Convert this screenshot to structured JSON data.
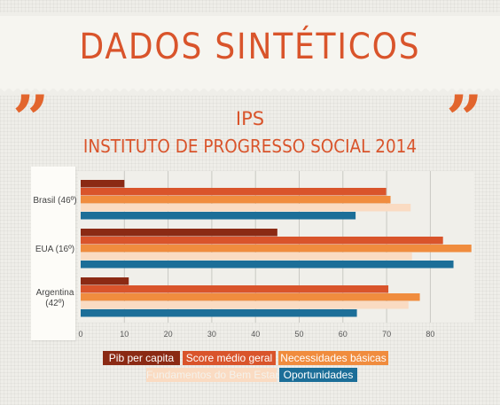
{
  "header": {
    "title": "DADOS SINTÉTICOS",
    "quote_mark": "”",
    "subtitle": "IPS",
    "subtitle2": "INSTITUTO DE PROGRESSO SOCIAL 2014"
  },
  "chart_data": {
    "type": "bar",
    "orientation": "horizontal",
    "categories": [
      "Brasil (46º)",
      "EUA (16º)",
      "Argentina (42º)"
    ],
    "series": [
      {
        "name": "Pib per capita",
        "color": "#8b2a14",
        "values": [
          10,
          45,
          11
        ]
      },
      {
        "name": "Score médio geral",
        "color": "#d9542b",
        "values": [
          69.9,
          82.9,
          70.4
        ]
      },
      {
        "name": "Necessidades básicas",
        "color": "#f08c3e",
        "values": [
          70.9,
          89.4,
          77.6
        ]
      },
      {
        "name": "Fundamentos do Bem Estar",
        "color": "#fadbc2",
        "values": [
          75.5,
          75.8,
          75
        ]
      },
      {
        "name": "Oportunidades",
        "color": "#1c6e98",
        "values": [
          62.9,
          85.3,
          63.2
        ]
      }
    ],
    "xlim": [
      0,
      90
    ],
    "ticks": [
      0,
      10,
      20,
      30,
      40,
      50,
      60,
      70,
      80
    ],
    "grid": true,
    "legend": "bottom"
  }
}
